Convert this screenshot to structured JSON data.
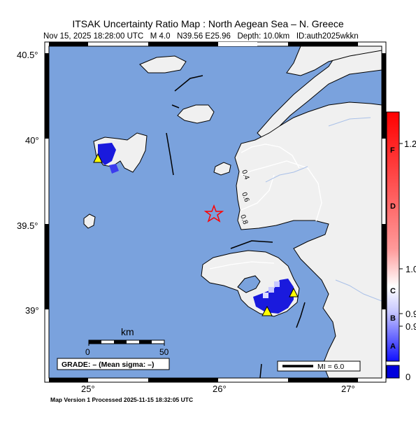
{
  "header": {
    "title": "ITSAK Uncertainty Ratio Map : North Aegean Sea – N. Greece",
    "subtitle": "Nov 15, 2025 18:28:00 UTC   M 4.0   N39.56 E25.96   Depth: 10.0km   ID:auth2025wkkn"
  },
  "axes": {
    "lat_labels": [
      "40.5°",
      "40°",
      "39.5°",
      "39°"
    ],
    "lon_labels": [
      "25°",
      "26°",
      "27°"
    ]
  },
  "contours": [
    "0.4",
    "0.6",
    "0.8"
  ],
  "scale_bar": {
    "unit": "km",
    "start": "0",
    "end": "50"
  },
  "grade_box": {
    "text": "GRADE: – (Mean sigma: –)"
  },
  "mi_legend": {
    "text": "MI = 6.0"
  },
  "colorbar": {
    "top_color": "#cc0000",
    "mid_color": "#ffffff",
    "bottom_color": "#1a1aff",
    "ticks": [
      "1.2",
      "1.0",
      "0.9",
      "0.9",
      "0"
    ],
    "grades": [
      "F",
      "D",
      "C",
      "B",
      "A"
    ]
  },
  "epicenter": {
    "marker": "star-icon",
    "color": "#ff0000"
  },
  "stations": {
    "marker": "triangle-icon",
    "color": "#ffff00"
  },
  "footer": {
    "text": "Map Version 1 Processed 2025-11-15 18:32:05 UTC"
  }
}
